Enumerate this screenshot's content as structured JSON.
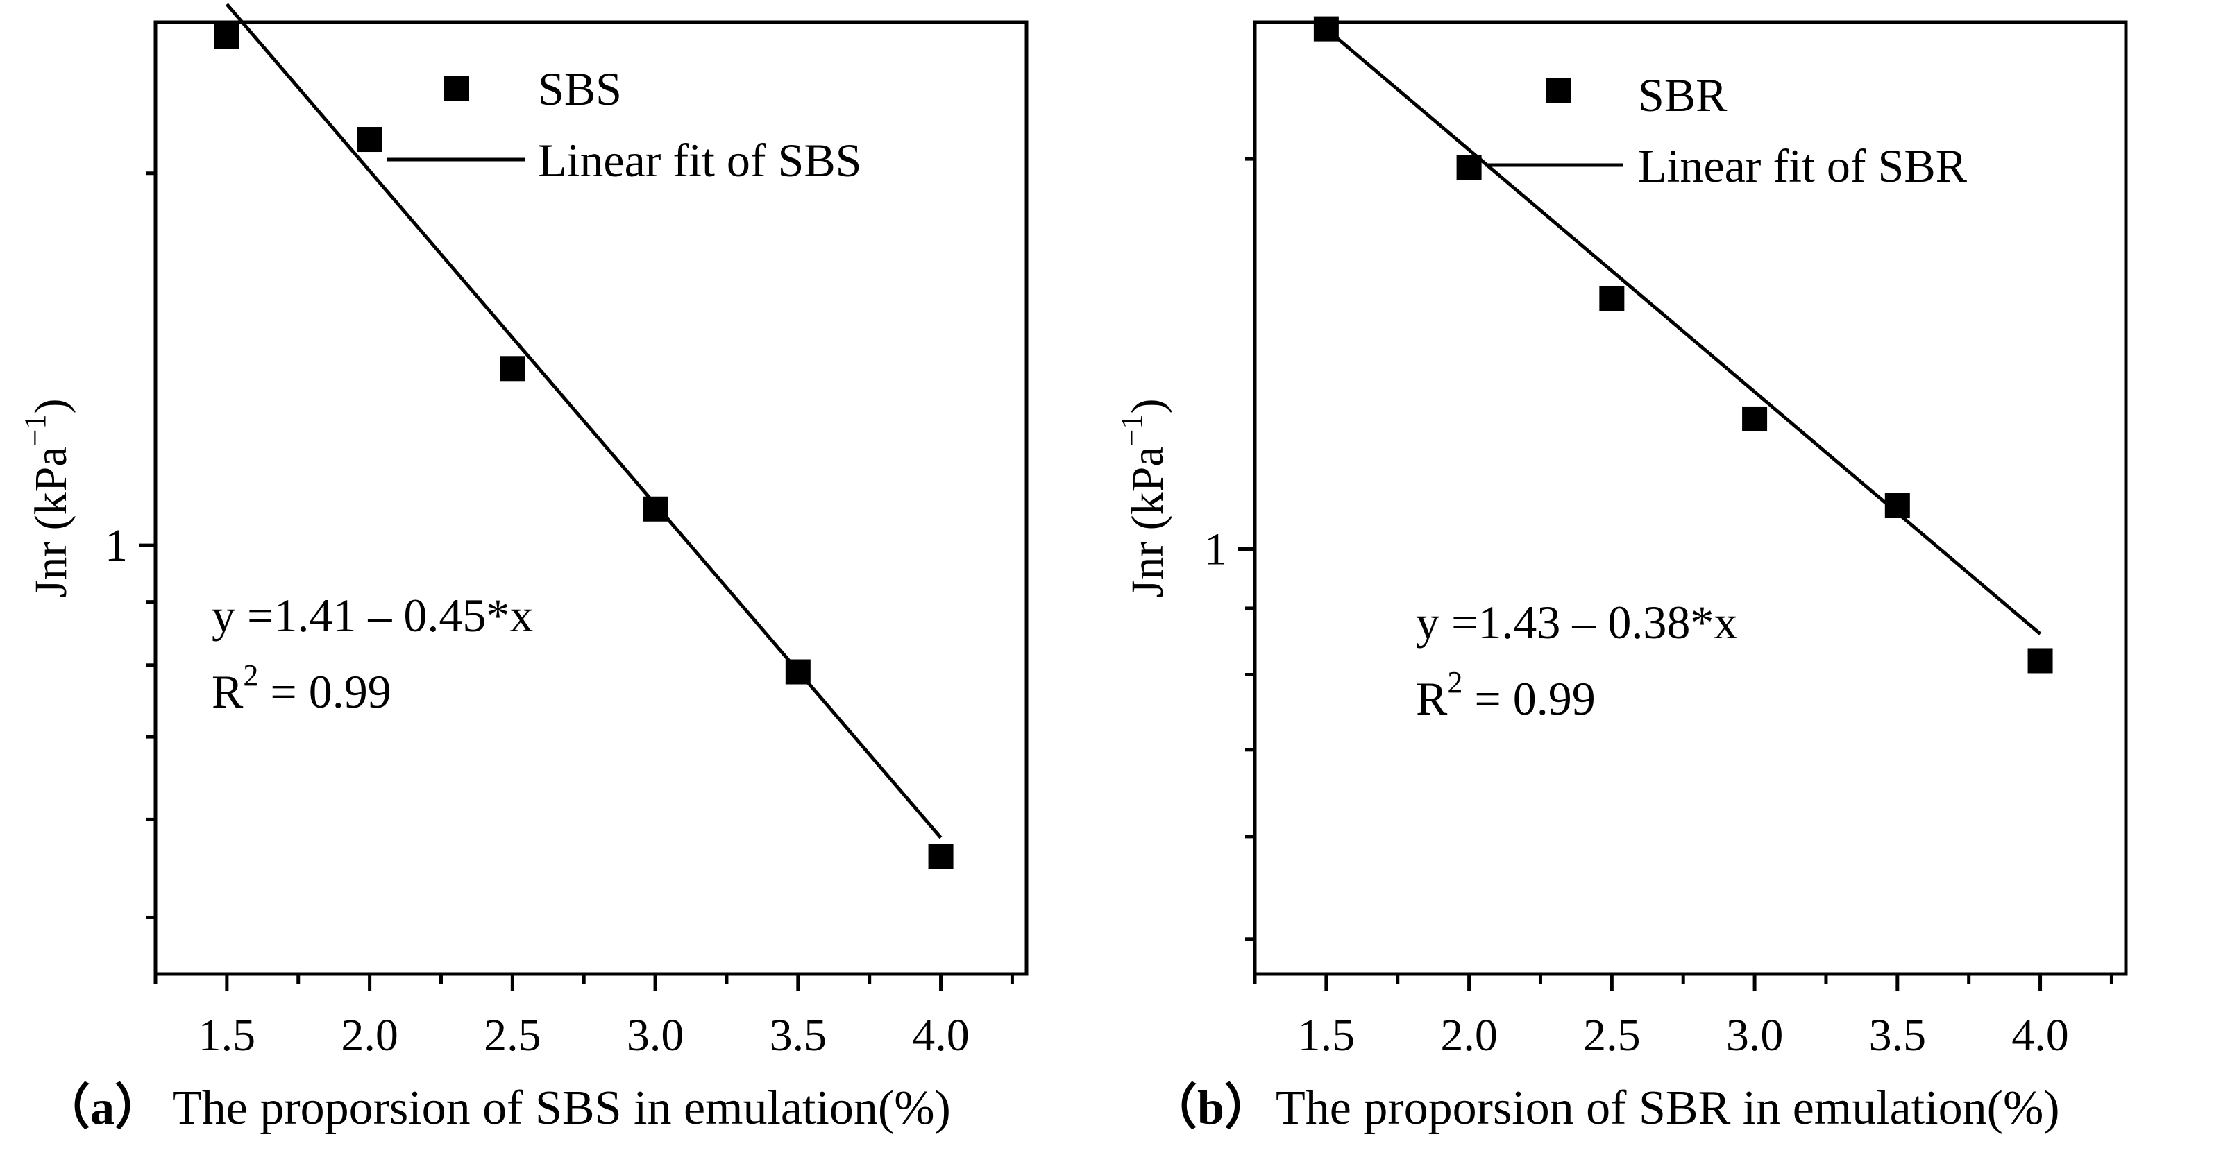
{
  "chart_data": [
    {
      "type": "scatter",
      "panel_label": "（a）",
      "xlabel": "The proporsion of SBS in emulation(%)",
      "ylabel": "Jnr (kPa",
      "ylabel_sup": "−1",
      "ylabel_close": ")",
      "yscale": "log",
      "xlim": [
        1.25,
        4.3
      ],
      "ylim": [
        0.45,
        2.65
      ],
      "x_tick_values": [
        1.5,
        2.0,
        2.5,
        3.0,
        3.5,
        4.0
      ],
      "x_tick_labels": [
        "1.5",
        "2.0",
        "2.5",
        "3.0",
        "3.5",
        "4.0"
      ],
      "y_labeled_ticks": [
        {
          "value": 1,
          "label": "1"
        }
      ],
      "series": [
        {
          "name": "SBS",
          "x": [
            1.5,
            2.0,
            2.5,
            3.0,
            3.5,
            4.0
          ],
          "y": [
            2.58,
            2.13,
            1.39,
            1.07,
            0.79,
            0.56
          ]
        }
      ],
      "fit": {
        "name": "Linear fit of SBS",
        "x": [
          1.5,
          4.0
        ],
        "y": [
          2.74,
          0.58
        ]
      },
      "equation": "y =1.41 – 0.45*x",
      "r2_prefix": "R",
      "r2_sup": "2",
      "r2_value": " = 0.99"
    },
    {
      "type": "scatter",
      "panel_label": "（b）",
      "xlabel": "The proporsion of SBR in emulation(%)",
      "ylabel": "Jnr (kPa",
      "ylabel_sup": "−1",
      "ylabel_close": ")",
      "yscale": "log",
      "xlim": [
        1.25,
        4.3
      ],
      "ylim": [
        0.47,
        2.55
      ],
      "x_tick_values": [
        1.5,
        2.0,
        2.5,
        3.0,
        3.5,
        4.0
      ],
      "x_tick_labels": [
        "1.5",
        "2.0",
        "2.5",
        "3.0",
        "3.5",
        "4.0"
      ],
      "y_labeled_ticks": [
        {
          "value": 1,
          "label": "1"
        }
      ],
      "series": [
        {
          "name": "SBR",
          "x": [
            1.5,
            2.0,
            2.5,
            3.0,
            3.5,
            4.0
          ],
          "y": [
            2.52,
            1.97,
            1.56,
            1.26,
            1.08,
            0.82
          ]
        }
      ],
      "fit": {
        "name": "Linear fit of SBR",
        "x": [
          1.5,
          4.0
        ],
        "y": [
          2.52,
          0.86
        ]
      },
      "equation": "y =1.43 – 0.38*x",
      "r2_prefix": "R",
      "r2_sup": "2",
      "r2_value": " = 0.99"
    }
  ]
}
